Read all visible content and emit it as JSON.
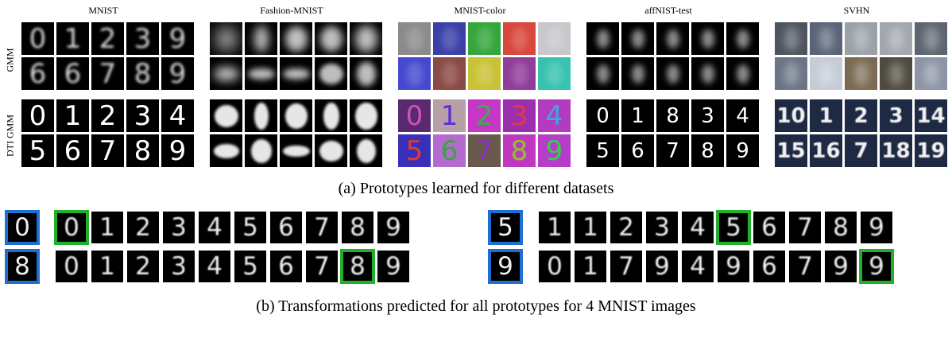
{
  "datasets": [
    "MNIST",
    "Fashion-MNIST",
    "MNIST-color",
    "affNIST-test",
    "SVHN"
  ],
  "row_labels": {
    "gmm": "GMM",
    "dti": "DTI GMM"
  },
  "caption_a": "(a) Prototypes learned for different datasets",
  "caption_b": "(b) Transformations predicted for all prototypes for 4 MNIST images",
  "prototypes": {
    "mnist_gmm": [
      "0",
      "1",
      "2",
      "3",
      "9",
      "6",
      "6",
      "7",
      "8",
      "9"
    ],
    "mnist_dti": [
      "0",
      "1",
      "2",
      "3",
      "4",
      "5",
      "6",
      "7",
      "8",
      "9"
    ],
    "fashion_gmm_items": [
      "shirt",
      "trousers",
      "pullover",
      "pullover",
      "coat",
      "sandal",
      "sneaker",
      "sneaker",
      "bag",
      "ankle-boot"
    ],
    "fashion_dti_items": [
      "tshirt",
      "trouser",
      "pullover",
      "dress",
      "coat",
      "sandal",
      "shirt",
      "sneaker",
      "bag",
      "ankle-boot"
    ],
    "color_gmm_colors": [
      "#8b8b8b",
      "#3a3fa8",
      "#35a53c",
      "#d8463c",
      "#c8c8cc",
      "#4549d0",
      "#8a4a45",
      "#c9c236",
      "#8f3c9a",
      "#38c2b0"
    ],
    "color_dti_digits": [
      "0",
      "1",
      "2",
      "3",
      "4",
      "5",
      "6",
      "7",
      "8",
      "9"
    ],
    "color_dti_fg": [
      "#d44fbf",
      "#5b2fd6",
      "#37b04a",
      "#e23a3a",
      "#3aa8e0",
      "#e33a2e",
      "#39a638",
      "#8a2fd0",
      "#8bc52e",
      "#2fd24c"
    ],
    "color_dti_bg": [
      "#5a2a6e",
      "#b8a0a8",
      "#c637c6",
      "#9a2fb0",
      "#b23bc0",
      "#3a2fb8",
      "#b36bd0",
      "#6a5a4e",
      "#c038c0",
      "#b73dc8"
    ],
    "affnist_dti": [
      "0",
      "1",
      "8",
      "3",
      "4",
      "5",
      "6",
      "7",
      "8",
      "9"
    ],
    "svhn_gmm_colors": [
      "#4d545e",
      "#5a6478",
      "#9aa1a8",
      "#a2a7ad",
      "#5d6670",
      "#6a7486",
      "#c5ccd6",
      "#7a6a52",
      "#4e4a3e",
      "#8c95a6"
    ],
    "svhn_dti": [
      "10",
      "1",
      "2",
      "3",
      "14",
      "15",
      "16",
      "7",
      "18",
      "19"
    ]
  },
  "transform_strips": [
    {
      "input": "0",
      "protos": [
        "0",
        "1",
        "2",
        "3",
        "4",
        "5",
        "6",
        "7",
        "8",
        "9"
      ],
      "best": 0
    },
    {
      "input": "8",
      "protos": [
        "0",
        "1",
        "2",
        "3",
        "4",
        "5",
        "6",
        "7",
        "8",
        "9"
      ],
      "best": 8
    },
    {
      "input": "5",
      "protos": [
        "1",
        "1",
        "2",
        "3",
        "4",
        "5",
        "6",
        "7",
        "8",
        "9"
      ],
      "best": 5
    },
    {
      "input": "9",
      "protos": [
        "0",
        "1",
        "7",
        "9",
        "4",
        "9",
        "6",
        "7",
        "9",
        "9"
      ],
      "best": 9
    }
  ]
}
